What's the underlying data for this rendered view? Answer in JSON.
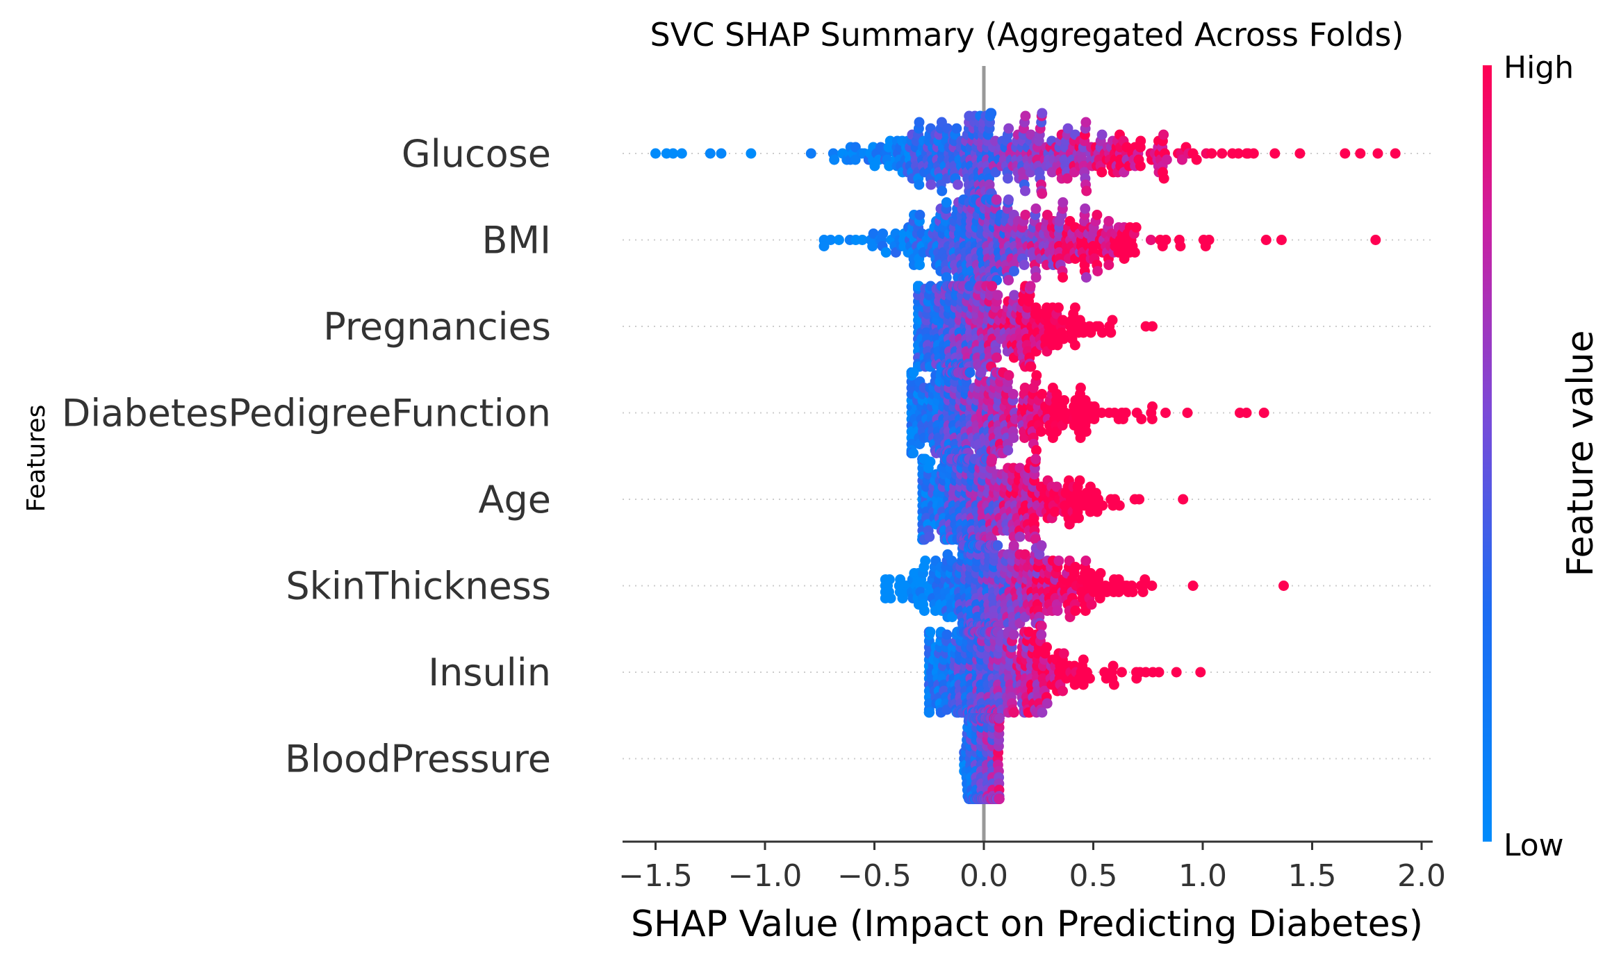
{
  "chart_data": {
    "type": "scatter",
    "subtype": "shap-beeswarm",
    "title": "SVC SHAP Summary (Aggregated Across Folds)",
    "xlabel": "SHAP Value (Impact on Predicting Diabetes)",
    "ylabel": "Features",
    "xlim": [
      -1.65,
      2.05
    ],
    "xticks": [
      -1.5,
      -1.0,
      -0.5,
      0.0,
      0.5,
      1.0,
      1.5,
      2.0
    ],
    "xtick_labels": [
      "−1.5",
      "−1.0",
      "−0.5",
      "0.0",
      "0.5",
      "1.0",
      "1.5",
      "2.0"
    ],
    "colorbar": {
      "label": "Feature value",
      "high_label": "High",
      "low_label": "Low",
      "low_color": "#008bfb",
      "high_color": "#ff0052"
    },
    "features": [
      {
        "name": "Glucose",
        "min": -1.5,
        "max": 1.88,
        "spread": 0.32,
        "center": 0.05,
        "color_slope": 1.4,
        "outliers": [
          [
            -1.5,
            0.0
          ],
          [
            -1.45,
            0.0
          ],
          [
            -1.42,
            0.0
          ],
          [
            -1.38,
            0.0
          ],
          [
            -1.25,
            0.05
          ],
          [
            -1.2,
            0.05
          ],
          [
            1.65,
            1.0
          ],
          [
            1.72,
            1.0
          ],
          [
            1.8,
            1.0
          ],
          [
            1.88,
            1.0
          ]
        ]
      },
      {
        "name": "BMI",
        "min": -0.73,
        "max": 1.79,
        "spread": 0.25,
        "center": 0.05,
        "color_slope": 1.8,
        "outliers": [
          [
            -0.73,
            0.05
          ],
          [
            -0.7,
            0.05
          ],
          [
            1.29,
            1.0
          ],
          [
            1.79,
            1.0
          ]
        ]
      },
      {
        "name": "Pregnancies",
        "min": -0.3,
        "max": 0.77,
        "spread": 0.18,
        "center": -0.1,
        "color_slope": 3.0,
        "outliers": [
          [
            0.74,
            1.0
          ],
          [
            0.77,
            1.0
          ]
        ]
      },
      {
        "name": "DiabetesPedigreeFunction",
        "min": -0.33,
        "max": 1.28,
        "spread": 0.2,
        "center": -0.07,
        "color_slope": 3.0,
        "outliers": [
          [
            0.72,
            1.0
          ],
          [
            0.77,
            1.0
          ],
          [
            0.83,
            1.0
          ],
          [
            0.93,
            1.0
          ],
          [
            1.17,
            1.0
          ],
          [
            1.2,
            1.0
          ],
          [
            1.28,
            1.0
          ]
        ]
      },
      {
        "name": "Age",
        "min": -0.28,
        "max": 0.91,
        "spread": 0.18,
        "center": -0.05,
        "color_slope": 3.0,
        "outliers": [
          [
            0.62,
            1.0
          ],
          [
            0.69,
            1.0
          ],
          [
            0.91,
            1.0
          ]
        ]
      },
      {
        "name": "SkinThickness",
        "min": -0.45,
        "max": 1.37,
        "spread": 0.2,
        "center": 0.05,
        "color_slope": 3.0,
        "outliers": [
          [
            -0.45,
            0.0
          ],
          [
            0.66,
            1.0
          ],
          [
            1.37,
            1.0
          ]
        ]
      },
      {
        "name": "Insulin",
        "min": -0.25,
        "max": 0.99,
        "spread": 0.15,
        "center": 0.0,
        "color_slope": 3.0,
        "outliers": [
          [
            0.74,
            1.0
          ],
          [
            0.8,
            1.0
          ],
          [
            0.88,
            1.0
          ],
          [
            0.99,
            1.0
          ]
        ]
      },
      {
        "name": "BloodPressure",
        "min": -0.09,
        "max": 0.09,
        "spread": 0.04,
        "center": 0.0,
        "color_slope": 8.0,
        "outliers": []
      }
    ]
  }
}
